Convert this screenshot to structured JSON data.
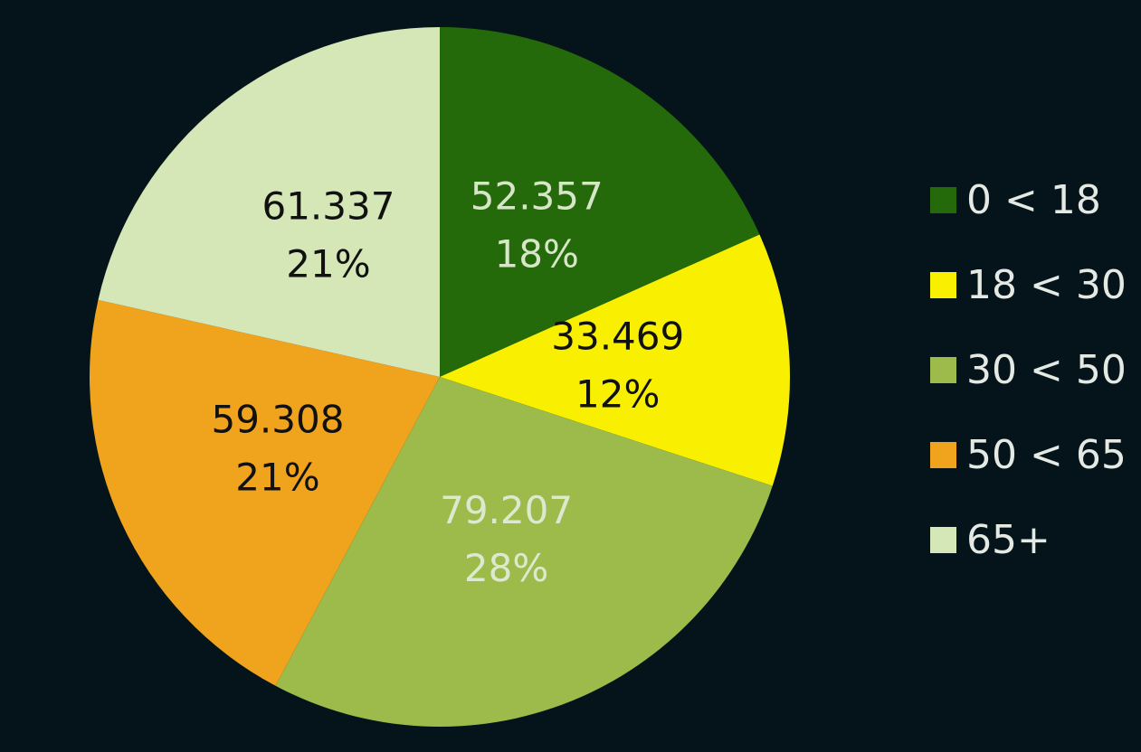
{
  "chart_data": {
    "type": "pie",
    "categories": [
      "0 < 18",
      "18 < 30",
      "30 < 50",
      "50 < 65",
      "65+"
    ],
    "values": [
      52.357,
      33.469,
      79.207,
      59.308,
      61.337
    ],
    "percent_labels": [
      "18%",
      "12%",
      "28%",
      "21%",
      "21%"
    ],
    "colors": [
      "#246a0b",
      "#f8f000",
      "#9cbb4b",
      "#f0a31d",
      "#d5e7b6"
    ],
    "label_colors": [
      "#d6e6c6",
      "#111111",
      "#dde9cf",
      "#111111",
      "#111111"
    ],
    "legend": "right"
  }
}
